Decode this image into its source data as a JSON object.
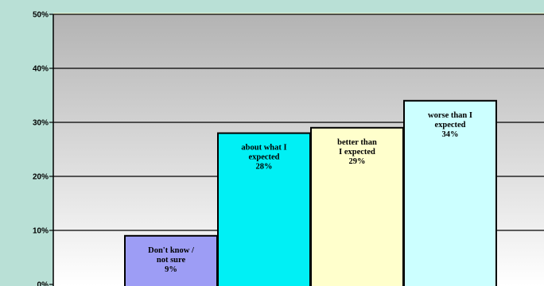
{
  "chart_data": {
    "type": "bar",
    "title": "",
    "xlabel": "",
    "ylabel": "",
    "ylim": [
      0,
      50
    ],
    "yticks": [
      "0%",
      "10%",
      "20%",
      "30%",
      "40%",
      "50%"
    ],
    "grid": true,
    "legend": "none",
    "categories": [
      {
        "lines": [
          "Don't know /",
          "not sure",
          "9%"
        ],
        "value": 9,
        "color": "#9d9df5"
      },
      {
        "lines": [
          "about what I",
          "expected",
          "28%"
        ],
        "value": 28,
        "color": "#00f0f5"
      },
      {
        "lines": [
          "better than",
          "I expected",
          "29%"
        ],
        "value": 29,
        "color": "#ffffcc"
      },
      {
        "lines": [
          "worse than I",
          "expected",
          "34%"
        ],
        "value": 34,
        "color": "#ccffff"
      }
    ]
  },
  "colors": {
    "page_background": "#b9e0d6",
    "plot_gradient_top": "#b3b3b3",
    "plot_gradient_bottom": "#ffffff",
    "plot_border": "#ffffd0"
  }
}
